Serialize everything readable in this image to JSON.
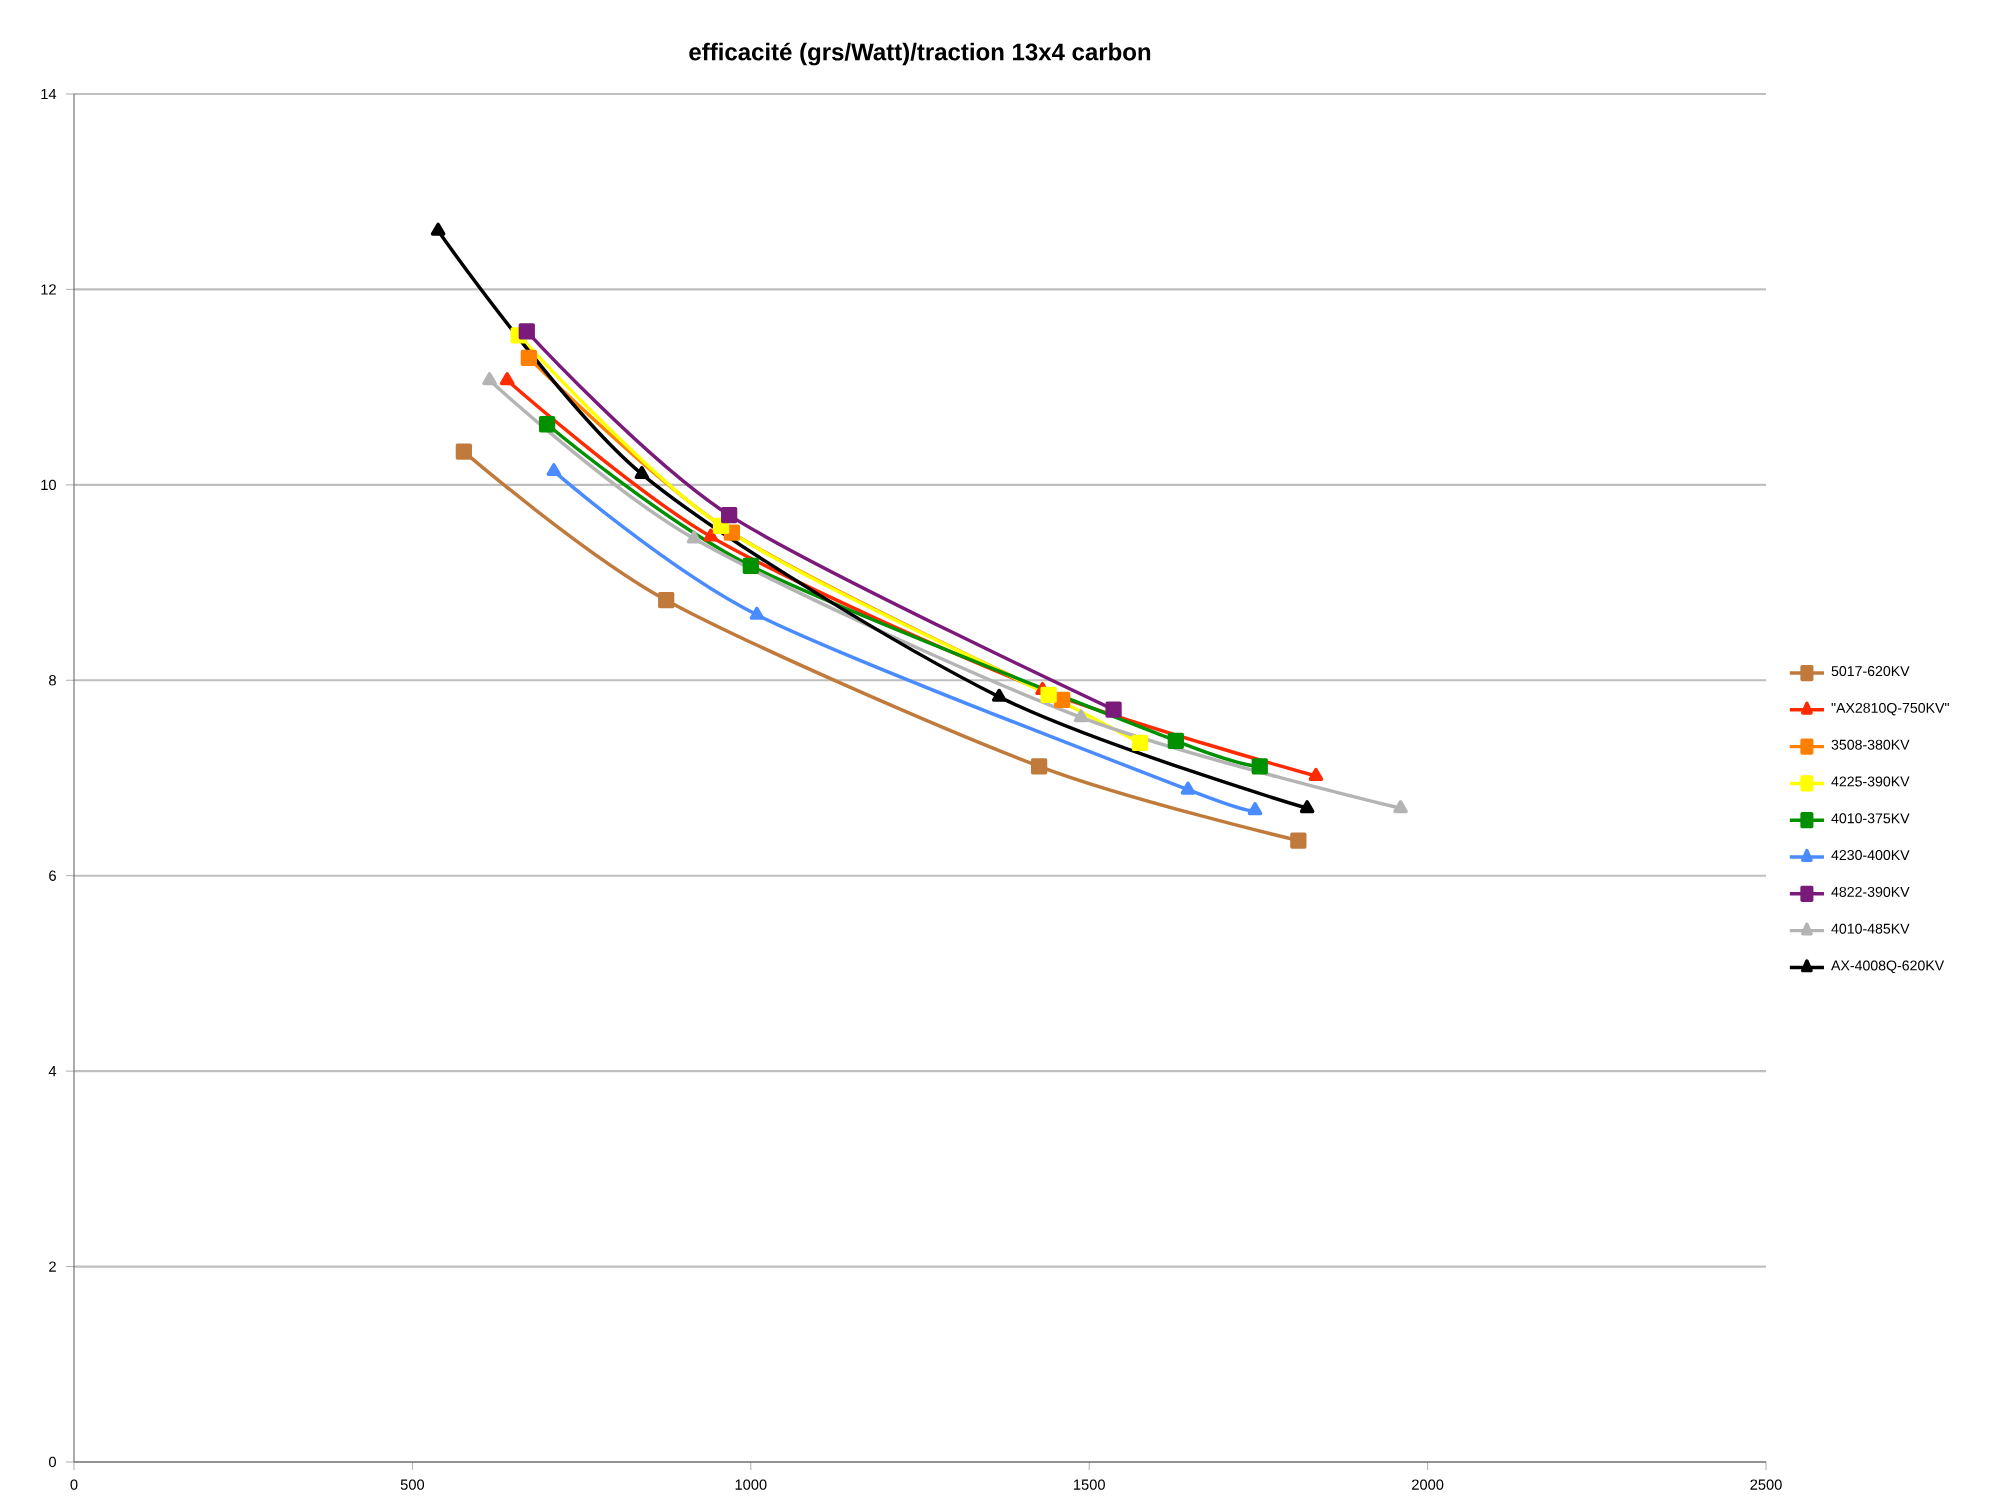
{
  "chart_data": {
    "type": "line",
    "title": "efficacité (grs/Watt)/traction 13x4 carbon",
    "xlim": [
      0,
      2500
    ],
    "xticks": [
      0,
      500,
      1000,
      1500,
      2000,
      2500
    ],
    "ylim": [
      0,
      14
    ],
    "yticks": [
      0,
      2,
      4,
      6,
      8,
      10,
      12,
      14
    ],
    "grid": "y",
    "legend": "right",
    "line_style": "solid",
    "series": [
      {
        "name": "5017-620KV",
        "color": "#c07a3c",
        "marker": "square",
        "x": [
          576,
          875,
          1426,
          1809
        ],
        "values": [
          10.34,
          8.82,
          7.12,
          6.36
        ]
      },
      {
        "name": "\"AX2810Q-750KV\"",
        "color": "#ff2a00",
        "marker": "triangle",
        "x": [
          640,
          941,
          1431,
          1835
        ],
        "values": [
          11.07,
          9.47,
          7.9,
          7.02
        ]
      },
      {
        "name": "3508-380KV",
        "color": "#ff8000",
        "marker": "square",
        "x": [
          672,
          972,
          1460
        ],
        "values": [
          11.3,
          9.51,
          7.8
        ]
      },
      {
        "name": "4225-390KV",
        "color": "#ffff00",
        "marker": "square",
        "x": [
          657,
          956,
          1440,
          1575
        ],
        "values": [
          11.53,
          9.58,
          7.85,
          7.36
        ]
      },
      {
        "name": "4010-375KV",
        "color": "#009000",
        "marker": "square",
        "x": [
          699,
          1000,
          1628,
          1752
        ],
        "values": [
          10.62,
          9.17,
          7.38,
          7.12
        ]
      },
      {
        "name": "4230-400KV",
        "color": "#4a8cff",
        "marker": "triangle",
        "x": [
          709,
          1009,
          1646,
          1745
        ],
        "values": [
          10.14,
          8.67,
          6.88,
          6.67
        ]
      },
      {
        "name": "4822-390KV",
        "color": "#7a1a7a",
        "marker": "square",
        "x": [
          669,
          968,
          1536
        ],
        "values": [
          11.57,
          9.69,
          7.7
        ]
      },
      {
        "name": "4010-485KV",
        "color": "#b4b4b4",
        "marker": "triangle",
        "x": [
          614,
          916,
          1488,
          1960
        ],
        "values": [
          11.07,
          9.45,
          7.62,
          6.69
        ]
      },
      {
        "name": "AX-4008Q-620KV",
        "color": "#000000",
        "marker": "triangle",
        "x": [
          538,
          839,
          1367,
          1822
        ],
        "values": [
          12.6,
          10.11,
          7.83,
          6.69
        ]
      }
    ]
  }
}
